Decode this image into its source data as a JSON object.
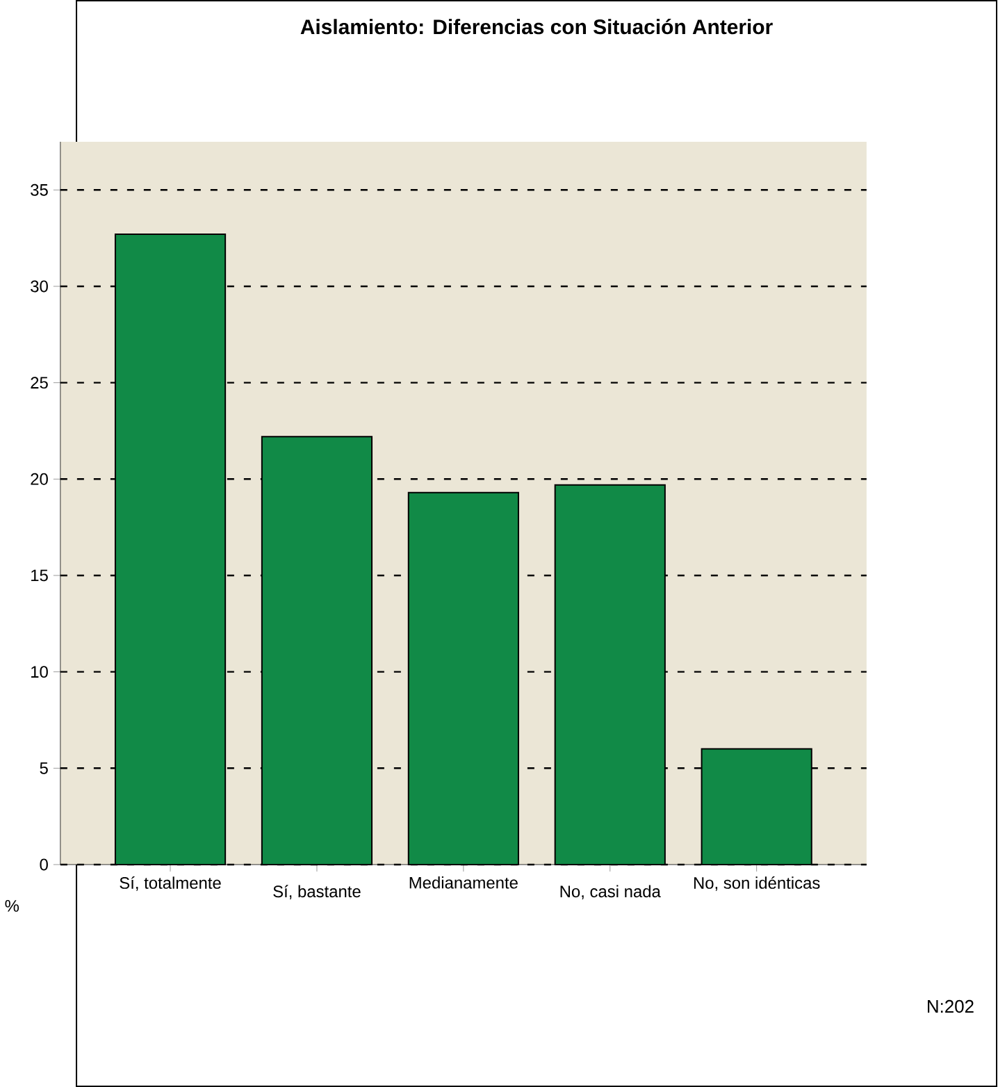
{
  "chart_data": {
    "type": "bar",
    "title": "Aislamiento: Diferencias con Situación Anterior",
    "categories": [
      "Sí, totalmente",
      "Sí, bastante",
      "Medianamente",
      "No, casi nada",
      "No, son idénticas"
    ],
    "values": [
      32.7,
      22.2,
      19.3,
      19.7,
      6.0
    ],
    "color": "#118a47",
    "ylim": [
      0,
      37.5
    ],
    "yticks": [
      0,
      5,
      10,
      15,
      20,
      25,
      30,
      35
    ],
    "grid": "y",
    "xlabel": "%",
    "annotations": [
      "N:202"
    ]
  }
}
